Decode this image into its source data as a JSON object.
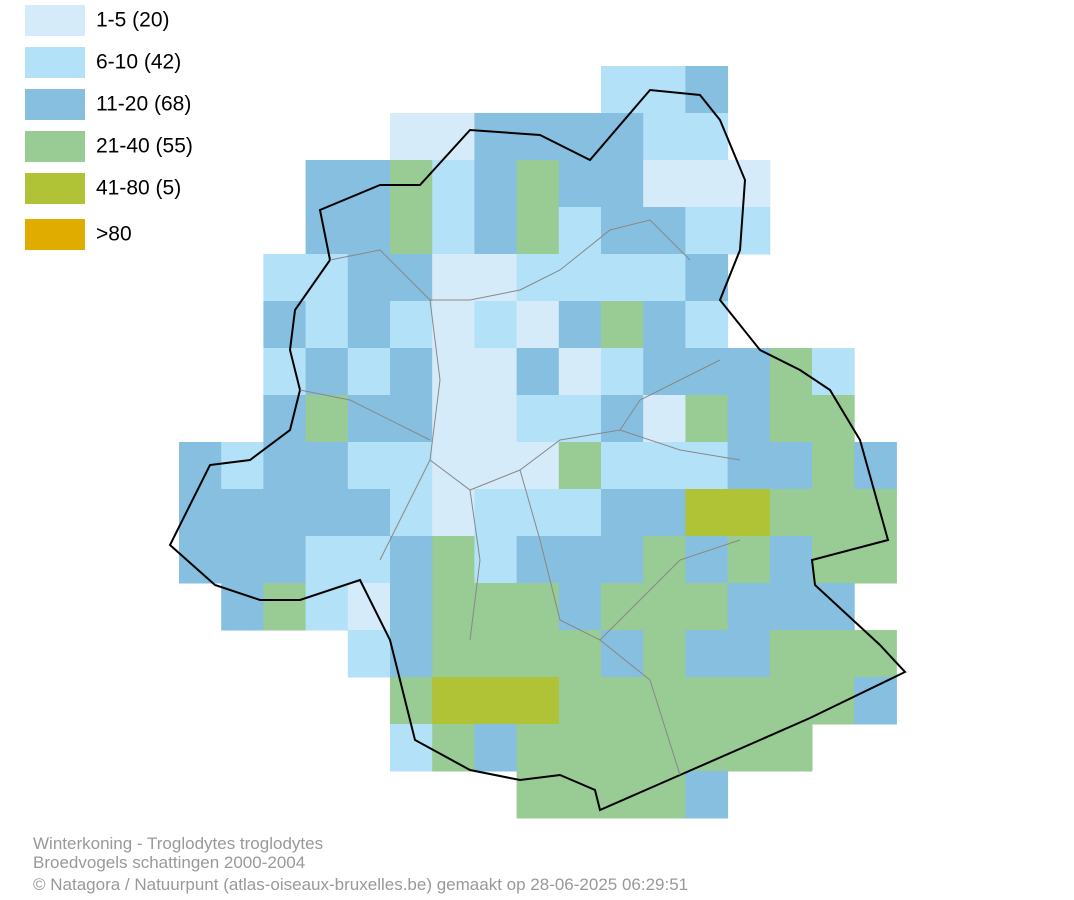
{
  "legend": [
    {
      "label": "1-5 (20)",
      "color": "#d6ebfa"
    },
    {
      "label": "6-10 (42)",
      "color": "#b3e1f8"
    },
    {
      "label": "11-20 (68)",
      "color": "#86bfdf"
    },
    {
      "label": "21-40 (55)",
      "color": "#99cb94"
    },
    {
      "label": "41-80 (5)",
      "color": "#b0c236"
    },
    {
      "label": ">80",
      "color": "#e0ac00"
    }
  ],
  "caption": [
    "Winterkoning - Troglodytes troglodytes",
    "Broedvogels schattingen 2000-2004",
    "© Natagora / Natuurpunt (atlas-oiseaux-bruxelles.be) gemaakt op 28-06-2025 06:29:51"
  ]
}
